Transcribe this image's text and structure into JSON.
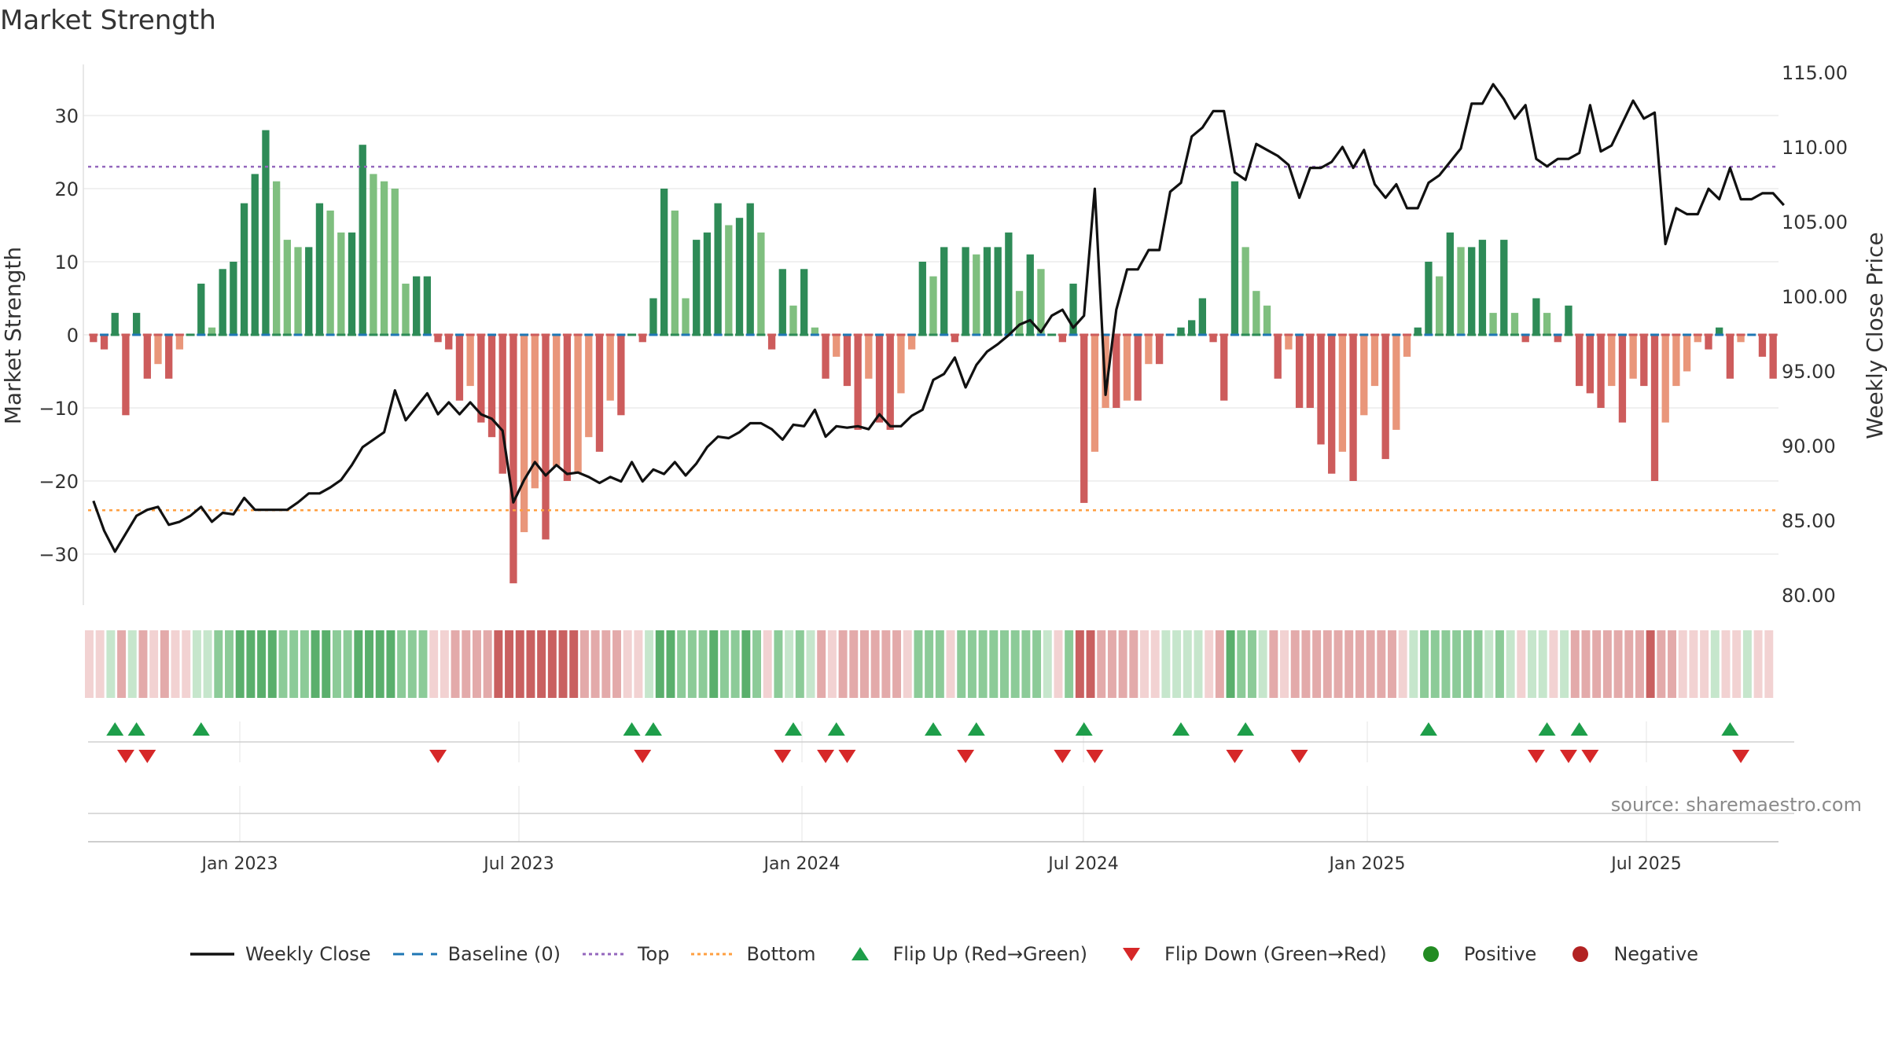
{
  "chart_data": {
    "type": "bar",
    "title": "Market Strength",
    "left_axis": {
      "label": "Market Strength",
      "ticks": [
        30,
        20,
        10,
        0,
        -10,
        -20,
        -30
      ],
      "range": [
        -38,
        38
      ]
    },
    "right_axis": {
      "label": "Weekly Close Price",
      "ticks": [
        "115.00",
        "110.00",
        "105.00",
        "100.00",
        "95.00",
        "90.00",
        "85.00",
        "80.00"
      ],
      "range": [
        79,
        116
      ]
    },
    "x_axis": {
      "ticks": [
        "Jan 2023",
        "Jul 2023",
        "Jan 2024",
        "Jul 2024",
        "Jan 2025",
        "Jul 2025"
      ]
    },
    "top_level": 23,
    "bottom_level": -24,
    "colors": {
      "strong_green": "#2e8b57",
      "light_green": "#7fbf7f",
      "strong_red": "#cd5c5c",
      "light_red": "#e9967a",
      "baseline": "#1f77b4",
      "top": "#9467bd",
      "bottom": "#ff9f40",
      "line": "#111111",
      "flip_up": "#1e9e4a",
      "flip_down": "#d62728",
      "positive": "#228b22",
      "negative": "#b22222"
    },
    "strength": [
      -1,
      -2,
      3,
      -11,
      3,
      -6,
      -4,
      -6,
      -2,
      0,
      7,
      1,
      9,
      10,
      18,
      22,
      28,
      21,
      13,
      12,
      12,
      18,
      17,
      14,
      14,
      26,
      22,
      21,
      20,
      7,
      8,
      8,
      -1,
      -2,
      -9,
      -7,
      -12,
      -14,
      -19,
      -34,
      -27,
      -21,
      -28,
      -18,
      -20,
      -19,
      -14,
      -16,
      -9,
      -11,
      0,
      -1,
      5,
      20,
      17,
      5,
      13,
      14,
      18,
      15,
      16,
      18,
      14,
      -2,
      9,
      4,
      9,
      1,
      -6,
      -3,
      -7,
      -13,
      -6,
      -12,
      -13,
      -8,
      -2,
      10,
      8,
      12,
      -1,
      12,
      11,
      12,
      12,
      14,
      6,
      11,
      9,
      0,
      -1,
      7,
      -23,
      -16,
      -10,
      -10,
      -9,
      -9,
      -4,
      -4,
      0,
      1,
      2,
      5,
      -1,
      -9,
      21,
      12,
      6,
      4,
      -6,
      -2,
      -10,
      -10,
      -15,
      -19,
      -16,
      -20,
      -11,
      -7,
      -17,
      -13,
      -3,
      1,
      10,
      8,
      14,
      12,
      12,
      13,
      3,
      13,
      3,
      -1,
      5,
      3,
      -1,
      4,
      -7,
      -8,
      -10,
      -7,
      -12,
      -6,
      -7,
      -20,
      -12,
      -7,
      -5,
      -1,
      -2,
      1,
      -6,
      -1,
      0,
      -3,
      -6
    ],
    "weekly_close": [
      86.3,
      84.3,
      82.9,
      84.1,
      85.3,
      85.7,
      85.9,
      84.7,
      84.9,
      85.3,
      85.9,
      84.9,
      85.5,
      85.4,
      86.5,
      85.7,
      85.7,
      85.7,
      85.7,
      86.2,
      86.8,
      86.8,
      87.2,
      87.7,
      88.7,
      89.9,
      90.4,
      90.9,
      93.7,
      91.7,
      92.6,
      93.5,
      92.1,
      92.9,
      92.1,
      92.9,
      92.1,
      91.8,
      91.0,
      86.2,
      87.7,
      88.9,
      88.0,
      88.7,
      88.1,
      88.2,
      87.9,
      87.5,
      87.9,
      87.6,
      88.9,
      87.6,
      88.4,
      88.1,
      88.9,
      88.0,
      88.8,
      89.9,
      90.6,
      90.5,
      90.9,
      91.5,
      91.5,
      91.1,
      90.4,
      91.4,
      91.3,
      92.4,
      90.6,
      91.3,
      91.2,
      91.3,
      91.1,
      92.1,
      91.3,
      91.3,
      92.0,
      92.4,
      94.4,
      94.8,
      95.9,
      93.9,
      95.4,
      96.3,
      96.8,
      97.4,
      98.1,
      98.4,
      97.6,
      98.7,
      99.1,
      97.9,
      98.7,
      107.2,
      93.4,
      99.1,
      101.8,
      101.8,
      103.1,
      103.1,
      107.0,
      107.6,
      110.7,
      111.3,
      112.4,
      112.4,
      108.3,
      107.8,
      110.2,
      109.8,
      109.4,
      108.8,
      106.6,
      108.6,
      108.6,
      109.0,
      110.0,
      108.6,
      109.8,
      107.5,
      106.6,
      107.5,
      105.9,
      105.9,
      107.6,
      108.1,
      109.0,
      109.9,
      112.9,
      112.9,
      114.2,
      113.2,
      111.9,
      112.8,
      109.2,
      108.7,
      109.2,
      109.2,
      109.6,
      112.8,
      109.7,
      110.1,
      111.6,
      113.1,
      111.9,
      112.3,
      103.5,
      105.9,
      105.5,
      105.5,
      107.2,
      106.5,
      108.6,
      106.5,
      106.5,
      106.9,
      106.9,
      106.1
    ],
    "trend_strip": [
      -1,
      -1,
      1,
      -2,
      1,
      -2,
      -1,
      -2,
      -1,
      -1,
      1,
      1,
      2,
      2,
      3,
      3,
      3,
      3,
      2,
      2,
      2,
      3,
      3,
      2,
      2,
      3,
      3,
      3,
      3,
      2,
      2,
      2,
      -1,
      -1,
      -2,
      -2,
      -2,
      -2,
      -3,
      -3,
      -3,
      -3,
      -3,
      -3,
      -3,
      -3,
      -2,
      -2,
      -2,
      -2,
      -1,
      -1,
      1,
      3,
      3,
      2,
      2,
      2,
      3,
      2,
      2,
      3,
      2,
      -1,
      2,
      1,
      2,
      1,
      -2,
      -1,
      -2,
      -2,
      -2,
      -2,
      -2,
      -2,
      -1,
      2,
      2,
      2,
      -1,
      2,
      2,
      2,
      2,
      2,
      2,
      2,
      2,
      1,
      -1,
      2,
      -3,
      -3,
      -2,
      -2,
      -2,
      -2,
      -1,
      -1,
      1,
      1,
      1,
      1,
      -1,
      -2,
      3,
      2,
      2,
      1,
      -2,
      -1,
      -2,
      -2,
      -2,
      -2,
      -2,
      -2,
      -2,
      -2,
      -2,
      -2,
      -1,
      1,
      2,
      2,
      2,
      2,
      2,
      2,
      1,
      2,
      1,
      -1,
      1,
      1,
      -1,
      1,
      -2,
      -2,
      -2,
      -2,
      -2,
      -2,
      -2,
      -3,
      -2,
      -2,
      -1,
      -1,
      -1,
      1,
      -1,
      -1,
      1,
      -1,
      -1
    ],
    "flip_up_weeks": [
      2,
      4,
      10,
      50,
      52,
      65,
      69,
      78,
      82,
      92,
      101,
      107,
      124,
      135,
      138,
      152
    ],
    "flip_down_weeks": [
      3,
      5,
      32,
      51,
      64,
      68,
      70,
      81,
      90,
      93,
      106,
      112,
      134,
      137,
      139,
      153
    ],
    "legend": [
      {
        "label": "Weekly Close",
        "kind": "line-solid",
        "color": "#111111"
      },
      {
        "label": "Baseline (0)",
        "kind": "line-dash",
        "color": "#1f77b4"
      },
      {
        "label": "Top",
        "kind": "line-dot",
        "color": "#9467bd"
      },
      {
        "label": "Bottom",
        "kind": "line-dot",
        "color": "#ff9f40"
      },
      {
        "label": "Flip Up (Red→Green)",
        "kind": "tri-up",
        "color": "#1e9e4a"
      },
      {
        "label": "Flip Down (Green→Red)",
        "kind": "tri-down",
        "color": "#d62728"
      },
      {
        "label": "Positive",
        "kind": "dot",
        "color": "#228b22"
      },
      {
        "label": "Negative",
        "kind": "dot",
        "color": "#b22222"
      }
    ],
    "source": "source: sharemaestro.com"
  }
}
